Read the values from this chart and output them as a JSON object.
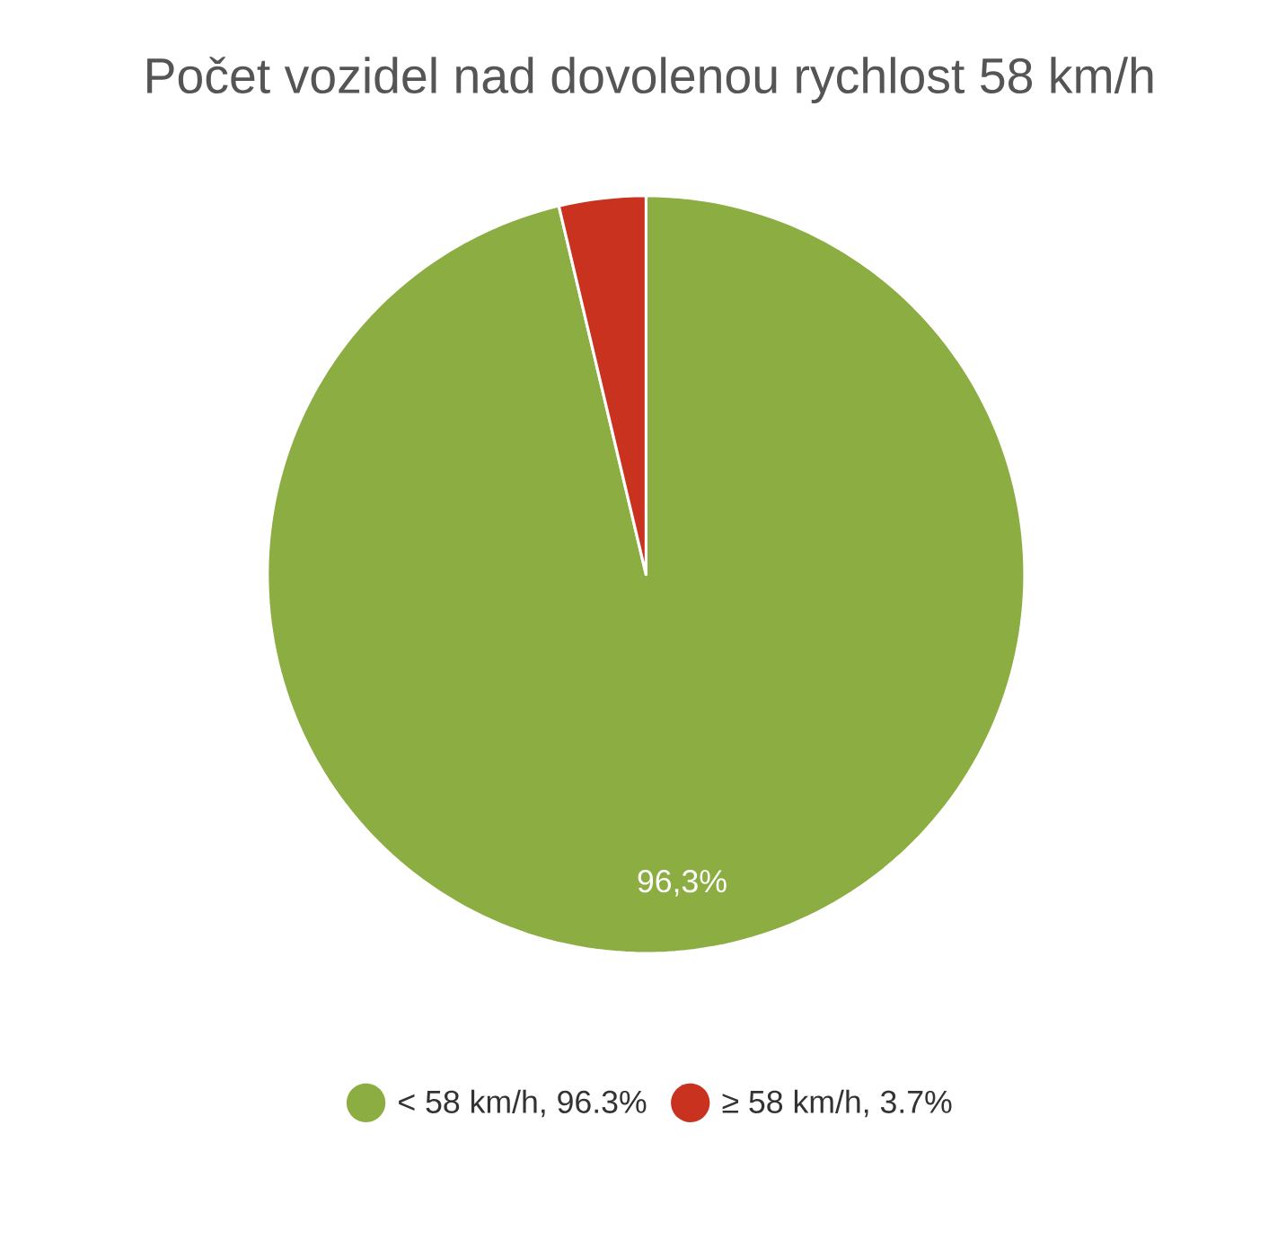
{
  "chart_data": {
    "type": "pie",
    "title": "Počet vozidel nad dovolenou rychlost 58 km/h",
    "categories": [
      "< 58 km/h, 96.3%",
      "≥ 58 km/h, 3.7%"
    ],
    "values": [
      96.3,
      3.7
    ],
    "colors": [
      "#8bad41",
      "#c8321e"
    ],
    "value_labels": [
      "96,3%",
      null
    ],
    "legend": "bottom"
  }
}
